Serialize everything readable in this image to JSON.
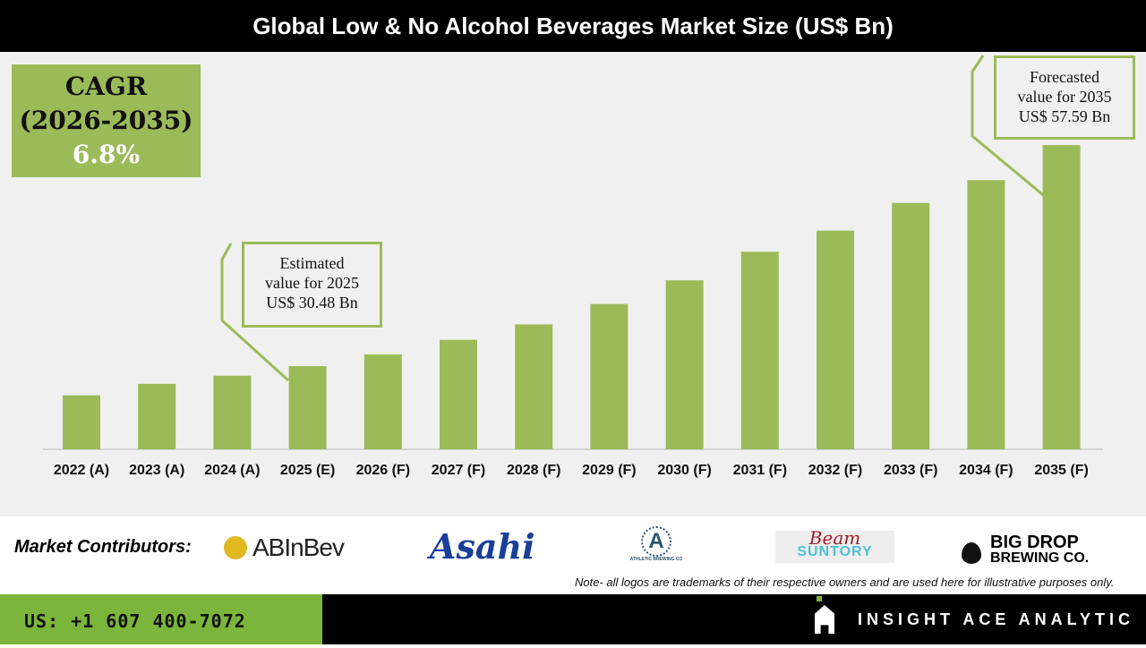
{
  "chart_data": {
    "type": "bar",
    "title": "Global Low & No Alcohol Beverages Market Size (US$ Bn)",
    "categories": [
      "2022 (A)",
      "2023 (A)",
      "2024 (A)",
      "2025 (E)",
      "2026 (F)",
      "2027 (F)",
      "2028 (F)",
      "2029 (F)",
      "2030 (F)",
      "2031 (F)",
      "2032 (F)",
      "2033 (F)",
      "2034 (F)",
      "2035 (F)"
    ],
    "values": [
      26.9,
      28.3,
      29.3,
      30.48,
      31.9,
      33.7,
      35.6,
      38.1,
      41.0,
      44.5,
      47.1,
      50.5,
      53.3,
      57.59
    ],
    "bar_color": "#9bbb59",
    "grid": false,
    "annotations": {
      "cagr": {
        "line1": "CAGR",
        "line2": "(2026-2035)",
        "value": "6.8%"
      },
      "estimated": {
        "line1": "Estimated",
        "line2": "value for 2025",
        "line3": "US$ 30.48 Bn"
      },
      "forecast": {
        "line1": "Forecasted",
        "line2": "value for 2035",
        "line3": "US$ 57.59 Bn"
      }
    }
  },
  "contributors": {
    "label": "Market Contributors:",
    "logos": [
      "ABInBev",
      "Asahi",
      "ATHLETIC BREWING CO",
      "Beam",
      "SUNTORY",
      "BIG DROP",
      "BREWING CO."
    ]
  },
  "note": "Note- all logos are trademarks of their respective owners and are used here for illustrative purposes only.",
  "footer": {
    "phone": "US: +1 607 400-7072",
    "brand": "INSIGHT ACE ANALYTIC",
    "accent": "#7cb53b"
  }
}
